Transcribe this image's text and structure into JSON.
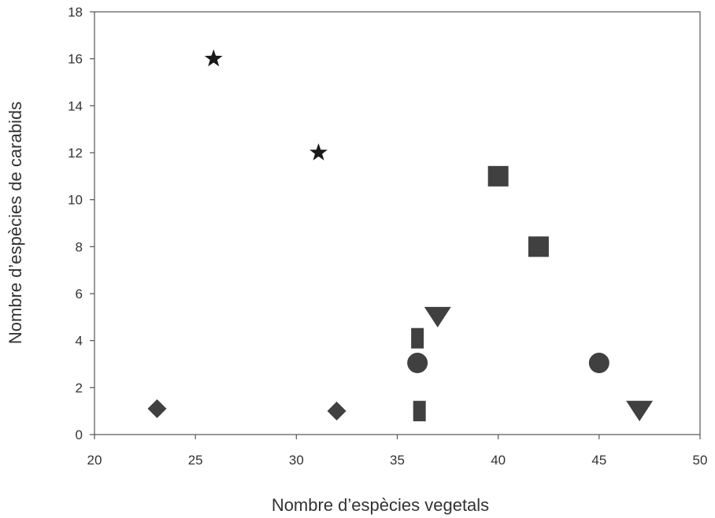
{
  "chart_data": {
    "type": "scatter",
    "title": "",
    "xlabel": "Nombre d’espècies vegetals",
    "ylabel": "Nombre d’espècies de carabids",
    "xlim": [
      20,
      50
    ],
    "ylim": [
      0,
      18
    ],
    "xticks": [
      20,
      25,
      30,
      35,
      40,
      45,
      50
    ],
    "yticks": [
      0,
      2,
      4,
      6,
      8,
      10,
      12,
      14,
      16,
      18
    ],
    "grid": false,
    "legend": "none",
    "marker_color": "#404040",
    "star_color": "#1a1a1a",
    "series": [
      {
        "marker": "star",
        "points": [
          [
            25.9,
            16
          ],
          [
            31.1,
            12
          ]
        ]
      },
      {
        "marker": "square",
        "points": [
          [
            40,
            11
          ],
          [
            42,
            8
          ]
        ]
      },
      {
        "marker": "triangle-down",
        "points": [
          [
            37,
            5
          ],
          [
            47,
            1
          ]
        ]
      },
      {
        "marker": "rect-tall",
        "points": [
          [
            36,
            4.1
          ],
          [
            36.1,
            1
          ]
        ]
      },
      {
        "marker": "circle",
        "points": [
          [
            36,
            3.05
          ],
          [
            45,
            3.05
          ]
        ]
      },
      {
        "marker": "diamond",
        "points": [
          [
            23.1,
            1.1
          ],
          [
            32,
            1
          ]
        ]
      }
    ]
  }
}
